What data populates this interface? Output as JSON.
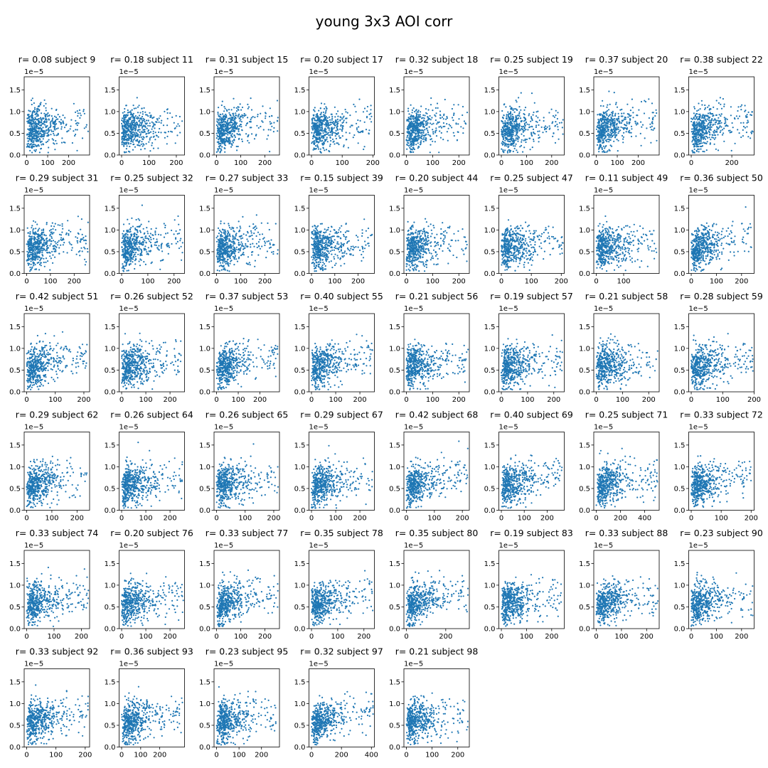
{
  "figure": {
    "title": "young 3x3 AOI corr"
  },
  "style": {
    "point_color": "#1f77b4",
    "axis_color": "#000000"
  },
  "chart_data": {
    "type": "scatter",
    "title": "young 3x3 AOI corr",
    "grid": false,
    "y_multiplier": "1e−5",
    "yticks": [
      "0.0",
      "0.5",
      "1.0",
      "1.5"
    ],
    "yticks_values": [
      0.0,
      0.5,
      1.0,
      1.5
    ],
    "ylim": [
      0,
      1.8
    ],
    "panels": [
      {
        "title": "r= 0.08 subject 9",
        "xmax": 300,
        "xticks": [
          0,
          100,
          200
        ],
        "r": 0.08
      },
      {
        "title": "r= 0.18 subject 11",
        "xmax": 230,
        "xticks": [
          0,
          100,
          200
        ],
        "r": 0.18
      },
      {
        "title": "r= 0.31 subject 15",
        "xmax": 260,
        "xticks": [
          0,
          100,
          200
        ],
        "r": 0.31
      },
      {
        "title": "r= 0.20 subject 17",
        "xmax": 205,
        "xticks": [
          0,
          100,
          200
        ],
        "r": 0.2
      },
      {
        "title": "r= 0.32 subject 18",
        "xmax": 240,
        "xticks": [
          0,
          100,
          200
        ],
        "r": 0.32
      },
      {
        "title": "r= 0.25 subject 19",
        "xmax": 250,
        "xticks": [
          0,
          100,
          200
        ],
        "r": 0.25
      },
      {
        "title": "r= 0.37 subject 20",
        "xmax": 300,
        "xticks": [
          0,
          100,
          200
        ],
        "r": 0.37
      },
      {
        "title": "r= 0.38 subject 22",
        "xmax": 310,
        "xticks": [
          0,
          200
        ],
        "r": 0.38
      },
      {
        "title": "r= 0.29 subject 31",
        "xmax": 265,
        "xticks": [
          0,
          100,
          200
        ],
        "r": 0.29
      },
      {
        "title": "r= 0.25 subject 32",
        "xmax": 240,
        "xticks": [
          0,
          100,
          200
        ],
        "r": 0.25
      },
      {
        "title": "r= 0.27 subject 33",
        "xmax": 260,
        "xticks": [
          0,
          100,
          200
        ],
        "r": 0.27
      },
      {
        "title": "r= 0.15 subject 39",
        "xmax": 270,
        "xticks": [
          0,
          100,
          200
        ],
        "r": 0.15
      },
      {
        "title": "r= 0.20 subject 44",
        "xmax": 240,
        "xticks": [
          0,
          100,
          200
        ],
        "r": 0.2
      },
      {
        "title": "r= 0.25 subject 47",
        "xmax": 210,
        "xticks": [
          0,
          100,
          200
        ],
        "r": 0.25
      },
      {
        "title": "r= 0.11 subject 49",
        "xmax": 230,
        "xticks": [
          0,
          100
        ],
        "r": 0.11
      },
      {
        "title": "r= 0.36 subject 50",
        "xmax": 250,
        "xticks": [
          0,
          100,
          200
        ],
        "r": 0.36
      },
      {
        "title": "r= 0.42 subject 51",
        "xmax": 220,
        "xticks": [
          0,
          100,
          200
        ],
        "r": 0.42
      },
      {
        "title": "r= 0.26 subject 52",
        "xmax": 260,
        "xticks": [
          0,
          100,
          200
        ],
        "r": 0.26
      },
      {
        "title": "r= 0.37 subject 53",
        "xmax": 290,
        "xticks": [
          0,
          100,
          200
        ],
        "r": 0.37
      },
      {
        "title": "r= 0.40 subject 55",
        "xmax": 260,
        "xticks": [
          0,
          100,
          200
        ],
        "r": 0.4
      },
      {
        "title": "r= 0.21 subject 56",
        "xmax": 240,
        "xticks": [
          0,
          100,
          200
        ],
        "r": 0.21
      },
      {
        "title": "r= 0.19 subject 57",
        "xmax": 240,
        "xticks": [
          0,
          100,
          200
        ],
        "r": 0.19
      },
      {
        "title": "r= 0.21 subject 58",
        "xmax": 240,
        "xticks": [
          0,
          100,
          200
        ],
        "r": 0.21
      },
      {
        "title": "r= 0.28 subject 59",
        "xmax": 200,
        "xticks": [
          0,
          100,
          200
        ],
        "r": 0.28
      },
      {
        "title": "r= 0.29 subject 62",
        "xmax": 250,
        "xticks": [
          0,
          100,
          200
        ],
        "r": 0.29
      },
      {
        "title": "r= 0.26 subject 64",
        "xmax": 260,
        "xticks": [
          0,
          100,
          200
        ],
        "r": 0.26
      },
      {
        "title": "r= 0.26 subject 65",
        "xmax": 220,
        "xticks": [
          0,
          100,
          200
        ],
        "r": 0.26
      },
      {
        "title": "r= 0.29 subject 67",
        "xmax": 260,
        "xticks": [
          0,
          100,
          200
        ],
        "r": 0.29
      },
      {
        "title": "r= 0.42 subject 68",
        "xmax": 225,
        "xticks": [
          0,
          100,
          200
        ],
        "r": 0.42
      },
      {
        "title": "r= 0.40 subject 69",
        "xmax": 275,
        "xticks": [
          0,
          100,
          200
        ],
        "r": 0.4
      },
      {
        "title": "r= 0.25 subject 71",
        "xmax": 520,
        "xticks": [
          0,
          200,
          400
        ],
        "r": 0.25
      },
      {
        "title": "r= 0.33 subject 72",
        "xmax": 210,
        "xticks": [
          0,
          100,
          200
        ],
        "r": 0.33
      },
      {
        "title": "r= 0.33 subject 74",
        "xmax": 230,
        "xticks": [
          0,
          100,
          200
        ],
        "r": 0.33
      },
      {
        "title": "r= 0.20 subject 76",
        "xmax": 260,
        "xticks": [
          0,
          100,
          200
        ],
        "r": 0.2
      },
      {
        "title": "r= 0.33 subject 77",
        "xmax": 260,
        "xticks": [
          0,
          100,
          200
        ],
        "r": 0.33
      },
      {
        "title": "r= 0.35 subject 78",
        "xmax": 240,
        "xticks": [
          0,
          100,
          200
        ],
        "r": 0.35
      },
      {
        "title": "r= 0.35 subject 80",
        "xmax": 320,
        "xticks": [
          0,
          200
        ],
        "r": 0.35
      },
      {
        "title": "r= 0.19 subject 83",
        "xmax": 250,
        "xticks": [
          0,
          100,
          200
        ],
        "r": 0.19
      },
      {
        "title": "r= 0.33 subject 88",
        "xmax": 250,
        "xticks": [
          0,
          100,
          200
        ],
        "r": 0.33
      },
      {
        "title": "r= 0.23 subject 90",
        "xmax": 250,
        "xticks": [
          0,
          100,
          200
        ],
        "r": 0.23
      },
      {
        "title": "r= 0.33 subject 92",
        "xmax": 215,
        "xticks": [
          0,
          100,
          200
        ],
        "r": 0.33
      },
      {
        "title": "r= 0.36 subject 93",
        "xmax": 330,
        "xticks": [
          0,
          100,
          200
        ],
        "r": 0.36
      },
      {
        "title": "r= 0.23 subject 95",
        "xmax": 280,
        "xticks": [
          0,
          100,
          200
        ],
        "r": 0.23
      },
      {
        "title": "r= 0.32 subject 97",
        "xmax": 420,
        "xticks": [
          0,
          200,
          400
        ],
        "r": 0.32
      },
      {
        "title": "r= 0.21 subject 98",
        "xmax": 245,
        "xticks": [
          0,
          100,
          200
        ],
        "r": 0.21
      }
    ]
  }
}
